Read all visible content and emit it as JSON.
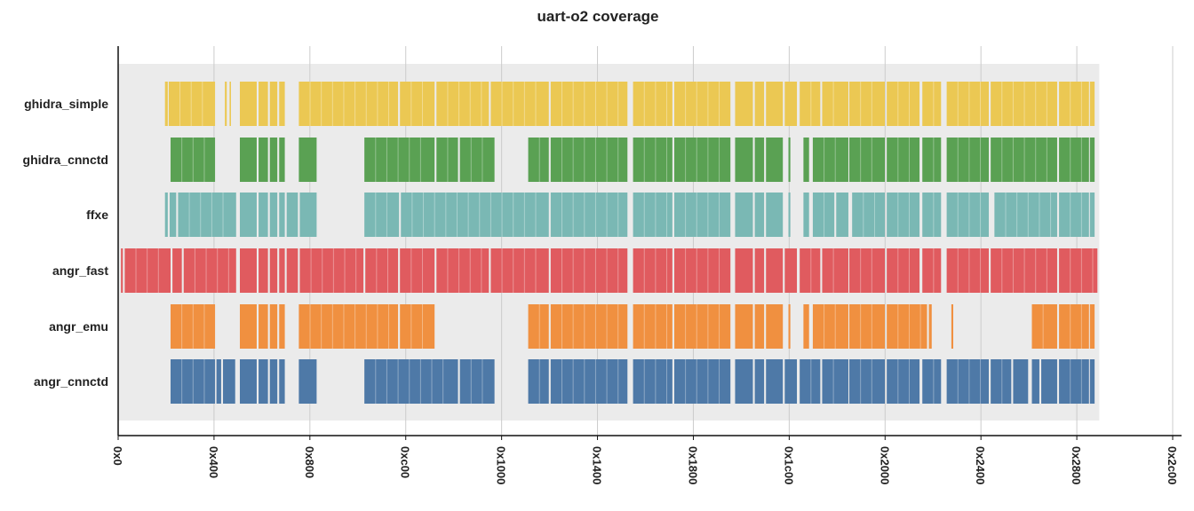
{
  "chart_data": {
    "type": "broken-barh",
    "title": "uart-o2 coverage",
    "xlabel": "",
    "ylabel": "",
    "x_tick_labels": [
      "0x0",
      "0x400",
      "0x800",
      "0xc00",
      "0x1000",
      "0x1400",
      "0x1800",
      "0x1c00",
      "0x2000",
      "0x2400",
      "0x2800",
      "0x2c00"
    ],
    "x_ticks": [
      0,
      1024,
      2048,
      3072,
      4096,
      5120,
      6144,
      7168,
      8192,
      9216,
      10240,
      11264
    ],
    "xlim": [
      0,
      11264
    ],
    "grid": true,
    "background_band": [
      0,
      10480
    ],
    "series": [
      {
        "name": "ghidra_simple",
        "color": "#ebc853",
        "segments": [
          [
            500,
            530
          ],
          [
            540,
            1035
          ],
          [
            1140,
            1160
          ],
          [
            1190,
            1205
          ],
          [
            1300,
            1480
          ],
          [
            1500,
            1600
          ],
          [
            1620,
            1700
          ],
          [
            1720,
            1780
          ],
          [
            1930,
            2990
          ],
          [
            3010,
            3380
          ],
          [
            3400,
            3960
          ],
          [
            3980,
            4600
          ],
          [
            4620,
            5440
          ],
          [
            5500,
            5920
          ],
          [
            5940,
            6540
          ],
          [
            6590,
            6780
          ],
          [
            6800,
            6900
          ],
          [
            6920,
            7100
          ],
          [
            7120,
            7250
          ],
          [
            7280,
            7500
          ],
          [
            7520,
            7800
          ],
          [
            7810,
            8190
          ],
          [
            8210,
            8560
          ],
          [
            8590,
            8790
          ],
          [
            8850,
            9300
          ],
          [
            9320,
            10030
          ],
          [
            10050,
            10370
          ],
          [
            10380,
            10430
          ]
        ]
      },
      {
        "name": "ghidra_cnnctd",
        "color": "#5aa153",
        "segments": [
          [
            560,
            1035
          ],
          [
            1300,
            1480
          ],
          [
            1500,
            1600
          ],
          [
            1620,
            1700
          ],
          [
            1720,
            1780
          ],
          [
            1930,
            2120
          ],
          [
            2630,
            3380
          ],
          [
            3400,
            3630
          ],
          [
            3650,
            4020
          ],
          [
            4380,
            4600
          ],
          [
            4620,
            5440
          ],
          [
            5500,
            5920
          ],
          [
            5940,
            6540
          ],
          [
            6590,
            6780
          ],
          [
            6800,
            6900
          ],
          [
            6920,
            7100
          ],
          [
            7160,
            7180
          ],
          [
            7320,
            7380
          ],
          [
            7420,
            7800
          ],
          [
            7810,
            8190
          ],
          [
            8210,
            8560
          ],
          [
            8590,
            8790
          ],
          [
            8850,
            9300
          ],
          [
            9320,
            10030
          ],
          [
            10050,
            10370
          ],
          [
            10380,
            10430
          ]
        ]
      },
      {
        "name": "ffxe",
        "color": "#7ab8b4",
        "segments": [
          [
            500,
            530
          ],
          [
            550,
            620
          ],
          [
            640,
            1260
          ],
          [
            1300,
            1480
          ],
          [
            1500,
            1600
          ],
          [
            1620,
            1700
          ],
          [
            1720,
            1780
          ],
          [
            1800,
            1920
          ],
          [
            1940,
            2120
          ],
          [
            2630,
            3000
          ],
          [
            3020,
            4600
          ],
          [
            4620,
            5440
          ],
          [
            5500,
            5920
          ],
          [
            5940,
            6540
          ],
          [
            6590,
            6780
          ],
          [
            6800,
            6900
          ],
          [
            6920,
            7100
          ],
          [
            7160,
            7180
          ],
          [
            7320,
            7380
          ],
          [
            7420,
            7650
          ],
          [
            7670,
            7800
          ],
          [
            7840,
            8190
          ],
          [
            8210,
            8560
          ],
          [
            8590,
            8790
          ],
          [
            8850,
            9300
          ],
          [
            9360,
            10030
          ],
          [
            10050,
            10370
          ],
          [
            10380,
            10430
          ]
        ]
      },
      {
        "name": "angr_fast",
        "color": "#e05b5f",
        "segments": [
          [
            30,
            50
          ],
          [
            70,
            560
          ],
          [
            580,
            680
          ],
          [
            700,
            1260
          ],
          [
            1300,
            1480
          ],
          [
            1500,
            1600
          ],
          [
            1620,
            1700
          ],
          [
            1720,
            1780
          ],
          [
            1800,
            1920
          ],
          [
            1940,
            2620
          ],
          [
            2640,
            2990
          ],
          [
            3010,
            3380
          ],
          [
            3400,
            3960
          ],
          [
            3980,
            4600
          ],
          [
            4620,
            5440
          ],
          [
            5500,
            5920
          ],
          [
            5940,
            6540
          ],
          [
            6590,
            6780
          ],
          [
            6800,
            6900
          ],
          [
            6920,
            7100
          ],
          [
            7120,
            7250
          ],
          [
            7280,
            7500
          ],
          [
            7520,
            7800
          ],
          [
            7810,
            8190
          ],
          [
            8210,
            8560
          ],
          [
            8590,
            8790
          ],
          [
            8850,
            9300
          ],
          [
            9320,
            10030
          ],
          [
            10050,
            10460
          ]
        ]
      },
      {
        "name": "angr_emu",
        "color": "#f09040",
        "segments": [
          [
            560,
            1035
          ],
          [
            1300,
            1480
          ],
          [
            1500,
            1600
          ],
          [
            1620,
            1700
          ],
          [
            1720,
            1780
          ],
          [
            1930,
            2990
          ],
          [
            3010,
            3380
          ],
          [
            4380,
            4600
          ],
          [
            4620,
            5440
          ],
          [
            5500,
            5920
          ],
          [
            5940,
            6540
          ],
          [
            6590,
            6780
          ],
          [
            6800,
            6900
          ],
          [
            6920,
            7100
          ],
          [
            7160,
            7180
          ],
          [
            7320,
            7380
          ],
          [
            7420,
            7800
          ],
          [
            7810,
            8190
          ],
          [
            8210,
            8640
          ],
          [
            8660,
            8690
          ],
          [
            8900,
            8920
          ],
          [
            9760,
            10030
          ],
          [
            10050,
            10370
          ],
          [
            10380,
            10430
          ]
        ]
      },
      {
        "name": "angr_cnnctd",
        "color": "#4e79a7",
        "segments": [
          [
            560,
            1035
          ],
          [
            1050,
            1100
          ],
          [
            1120,
            1250
          ],
          [
            1300,
            1480
          ],
          [
            1500,
            1600
          ],
          [
            1620,
            1700
          ],
          [
            1720,
            1780
          ],
          [
            1930,
            2120
          ],
          [
            2630,
            3630
          ],
          [
            3650,
            4020
          ],
          [
            4380,
            4600
          ],
          [
            4620,
            5440
          ],
          [
            5500,
            5920
          ],
          [
            5940,
            6540
          ],
          [
            6590,
            6780
          ],
          [
            6800,
            6900
          ],
          [
            6920,
            7100
          ],
          [
            7120,
            7250
          ],
          [
            7280,
            7500
          ],
          [
            7520,
            7800
          ],
          [
            7810,
            8190
          ],
          [
            8210,
            8560
          ],
          [
            8590,
            8790
          ],
          [
            8850,
            9300
          ],
          [
            9320,
            9540
          ],
          [
            9560,
            9720
          ],
          [
            9760,
            9840
          ],
          [
            9860,
            10030
          ],
          [
            10050,
            10370
          ],
          [
            10380,
            10430
          ]
        ]
      }
    ]
  }
}
